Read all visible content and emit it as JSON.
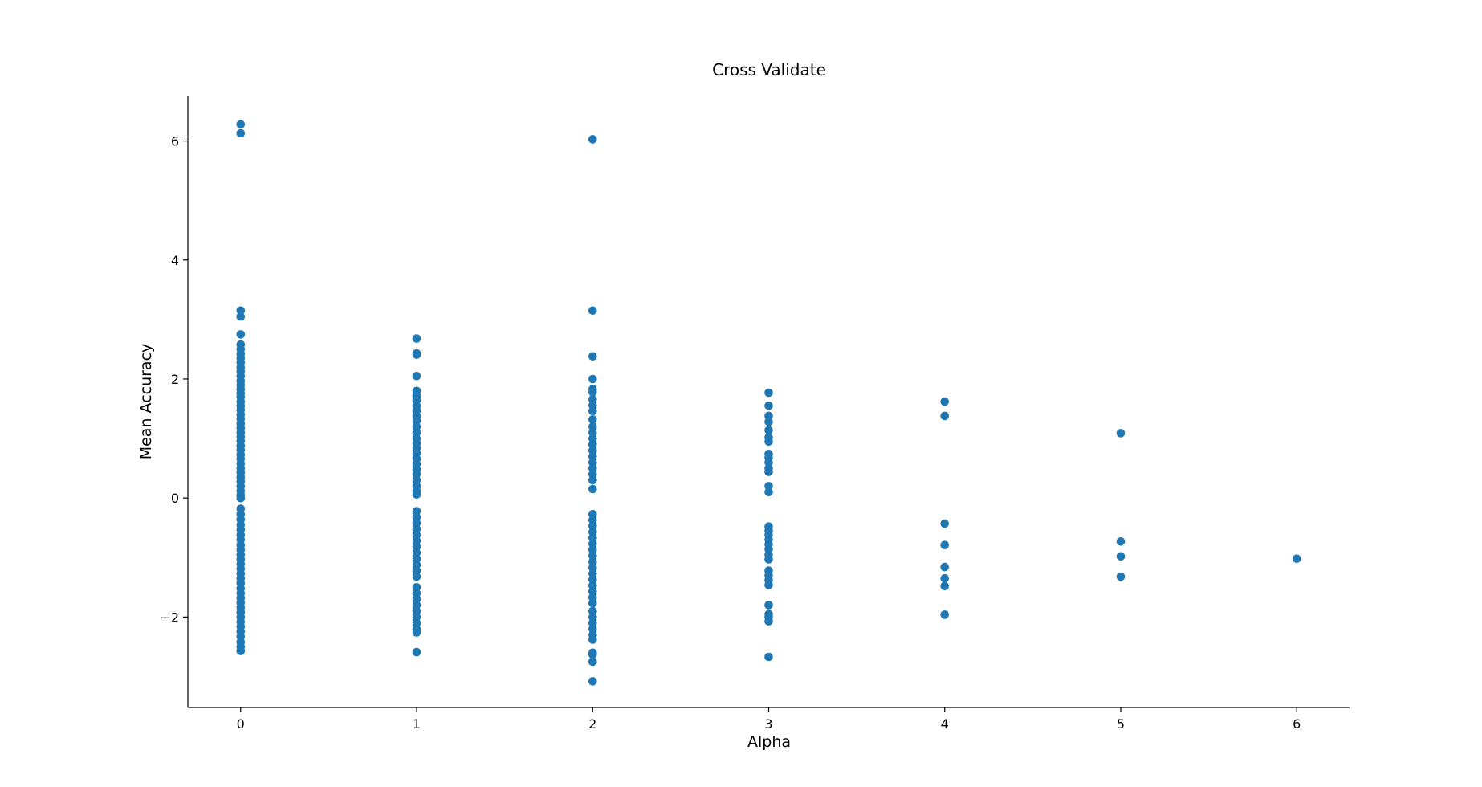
{
  "chart_data": {
    "type": "scatter",
    "title": "Cross Validate",
    "xlabel": "Alpha",
    "ylabel": "Mean Accuracy",
    "xlim": [
      -0.3,
      6.3
    ],
    "ylim": [
      -3.52,
      6.75
    ],
    "xticks": [
      0,
      1,
      2,
      3,
      4,
      5,
      6
    ],
    "yticks": [
      -2,
      0,
      2,
      4,
      6
    ],
    "grid": false,
    "color": "#1f77b4",
    "series": [
      {
        "points": [
          [
            0,
            6.28
          ],
          [
            0,
            6.13
          ],
          [
            0,
            3.15
          ],
          [
            0,
            3.05
          ],
          [
            0,
            2.75
          ],
          [
            0,
            2.58
          ],
          [
            0,
            2.5
          ],
          [
            0,
            2.42
          ],
          [
            0,
            2.35
          ],
          [
            0,
            2.28
          ],
          [
            0,
            2.2
          ],
          [
            0,
            2.13
          ],
          [
            0,
            2.05
          ],
          [
            0,
            1.97
          ],
          [
            0,
            1.9
          ],
          [
            0,
            1.83
          ],
          [
            0,
            1.76
          ],
          [
            0,
            1.7
          ],
          [
            0,
            1.62
          ],
          [
            0,
            1.55
          ],
          [
            0,
            1.48
          ],
          [
            0,
            1.4
          ],
          [
            0,
            1.33
          ],
          [
            0,
            1.25
          ],
          [
            0,
            1.18
          ],
          [
            0,
            1.1
          ],
          [
            0,
            1.03
          ],
          [
            0,
            0.96
          ],
          [
            0,
            0.88
          ],
          [
            0,
            0.81
          ],
          [
            0,
            0.73
          ],
          [
            0,
            0.66
          ],
          [
            0,
            0.58
          ],
          [
            0,
            0.5
          ],
          [
            0,
            0.43
          ],
          [
            0,
            0.35
          ],
          [
            0,
            0.28
          ],
          [
            0,
            0.2
          ],
          [
            0,
            0.12
          ],
          [
            0,
            0.05
          ],
          [
            0,
            0.0
          ],
          [
            0,
            -0.18
          ],
          [
            0,
            -0.27
          ],
          [
            0,
            -0.36
          ],
          [
            0,
            -0.45
          ],
          [
            0,
            -0.53
          ],
          [
            0,
            -0.62
          ],
          [
            0,
            -0.7
          ],
          [
            0,
            -0.79
          ],
          [
            0,
            -0.87
          ],
          [
            0,
            -0.95
          ],
          [
            0,
            -1.03
          ],
          [
            0,
            -1.11
          ],
          [
            0,
            -1.19
          ],
          [
            0,
            -1.27
          ],
          [
            0,
            -1.35
          ],
          [
            0,
            -1.43
          ],
          [
            0,
            -1.52
          ],
          [
            0,
            -1.6
          ],
          [
            0,
            -1.68
          ],
          [
            0,
            -1.76
          ],
          [
            0,
            -1.84
          ],
          [
            0,
            -1.92
          ],
          [
            0,
            -2.0
          ],
          [
            0,
            -2.08
          ],
          [
            0,
            -2.16
          ],
          [
            0,
            -2.24
          ],
          [
            0,
            -2.33
          ],
          [
            0,
            -2.42
          ],
          [
            0,
            -2.5
          ],
          [
            0,
            -2.57
          ],
          [
            1,
            2.68
          ],
          [
            1,
            2.43
          ],
          [
            1,
            2.41
          ],
          [
            1,
            2.05
          ],
          [
            1,
            1.8
          ],
          [
            1,
            1.72
          ],
          [
            1,
            1.64
          ],
          [
            1,
            1.55
          ],
          [
            1,
            1.47
          ],
          [
            1,
            1.38
          ],
          [
            1,
            1.3
          ],
          [
            1,
            1.2
          ],
          [
            1,
            1.1
          ],
          [
            1,
            1.0
          ],
          [
            1,
            0.92
          ],
          [
            1,
            0.84
          ],
          [
            1,
            0.75
          ],
          [
            1,
            0.66
          ],
          [
            1,
            0.57
          ],
          [
            1,
            0.48
          ],
          [
            1,
            0.4
          ],
          [
            1,
            0.3
          ],
          [
            1,
            0.2
          ],
          [
            1,
            0.12
          ],
          [
            1,
            0.06
          ],
          [
            1,
            -0.22
          ],
          [
            1,
            -0.32
          ],
          [
            1,
            -0.42
          ],
          [
            1,
            -0.52
          ],
          [
            1,
            -0.62
          ],
          [
            1,
            -0.72
          ],
          [
            1,
            -0.82
          ],
          [
            1,
            -0.92
          ],
          [
            1,
            -1.02
          ],
          [
            1,
            -1.12
          ],
          [
            1,
            -1.22
          ],
          [
            1,
            -1.32
          ],
          [
            1,
            -1.5
          ],
          [
            1,
            -1.6
          ],
          [
            1,
            -1.7
          ],
          [
            1,
            -1.8
          ],
          [
            1,
            -1.9
          ],
          [
            1,
            -2.0
          ],
          [
            1,
            -2.1
          ],
          [
            1,
            -2.2
          ],
          [
            1,
            -2.26
          ],
          [
            1,
            -2.59
          ],
          [
            2,
            6.03
          ],
          [
            2,
            3.15
          ],
          [
            2,
            2.38
          ],
          [
            2,
            2.0
          ],
          [
            2,
            1.83
          ],
          [
            2,
            1.78
          ],
          [
            2,
            1.66
          ],
          [
            2,
            1.56
          ],
          [
            2,
            1.46
          ],
          [
            2,
            1.32
          ],
          [
            2,
            1.2
          ],
          [
            2,
            1.1
          ],
          [
            2,
            1.0
          ],
          [
            2,
            0.9
          ],
          [
            2,
            0.8
          ],
          [
            2,
            0.7
          ],
          [
            2,
            0.6
          ],
          [
            2,
            0.5
          ],
          [
            2,
            0.4
          ],
          [
            2,
            0.3
          ],
          [
            2,
            0.15
          ],
          [
            2,
            -0.27
          ],
          [
            2,
            -0.37
          ],
          [
            2,
            -0.47
          ],
          [
            2,
            -0.57
          ],
          [
            2,
            -0.67
          ],
          [
            2,
            -0.77
          ],
          [
            2,
            -0.87
          ],
          [
            2,
            -0.97
          ],
          [
            2,
            -1.07
          ],
          [
            2,
            -1.17
          ],
          [
            2,
            -1.27
          ],
          [
            2,
            -1.37
          ],
          [
            2,
            -1.47
          ],
          [
            2,
            -1.57
          ],
          [
            2,
            -1.67
          ],
          [
            2,
            -1.77
          ],
          [
            2,
            -1.9
          ],
          [
            2,
            -2.0
          ],
          [
            2,
            -2.1
          ],
          [
            2,
            -2.2
          ],
          [
            2,
            -2.3
          ],
          [
            2,
            -2.38
          ],
          [
            2,
            -2.6
          ],
          [
            2,
            -2.63
          ],
          [
            2,
            -2.75
          ],
          [
            2,
            -3.08
          ],
          [
            3,
            1.77
          ],
          [
            3,
            1.55
          ],
          [
            3,
            1.38
          ],
          [
            3,
            1.28
          ],
          [
            3,
            1.14
          ],
          [
            3,
            1.02
          ],
          [
            3,
            0.95
          ],
          [
            3,
            0.74
          ],
          [
            3,
            0.68
          ],
          [
            3,
            0.6
          ],
          [
            3,
            0.5
          ],
          [
            3,
            0.44
          ],
          [
            3,
            0.2
          ],
          [
            3,
            0.1
          ],
          [
            3,
            -0.48
          ],
          [
            3,
            -0.55
          ],
          [
            3,
            -0.62
          ],
          [
            3,
            -0.7
          ],
          [
            3,
            -0.78
          ],
          [
            3,
            -0.86
          ],
          [
            3,
            -0.95
          ],
          [
            3,
            -1.03
          ],
          [
            3,
            -1.22
          ],
          [
            3,
            -1.3
          ],
          [
            3,
            -1.38
          ],
          [
            3,
            -1.46
          ],
          [
            3,
            -1.8
          ],
          [
            3,
            -1.95
          ],
          [
            3,
            -2.0
          ],
          [
            3,
            -2.07
          ],
          [
            3,
            -2.67
          ],
          [
            4,
            1.62
          ],
          [
            4,
            1.38
          ],
          [
            4,
            -0.43
          ],
          [
            4,
            -0.79
          ],
          [
            4,
            -1.16
          ],
          [
            4,
            -1.35
          ],
          [
            4,
            -1.48
          ],
          [
            4,
            -1.96
          ],
          [
            5,
            1.09
          ],
          [
            5,
            -0.73
          ],
          [
            5,
            -0.98
          ],
          [
            5,
            -1.32
          ],
          [
            6,
            -1.02
          ]
        ]
      }
    ]
  }
}
